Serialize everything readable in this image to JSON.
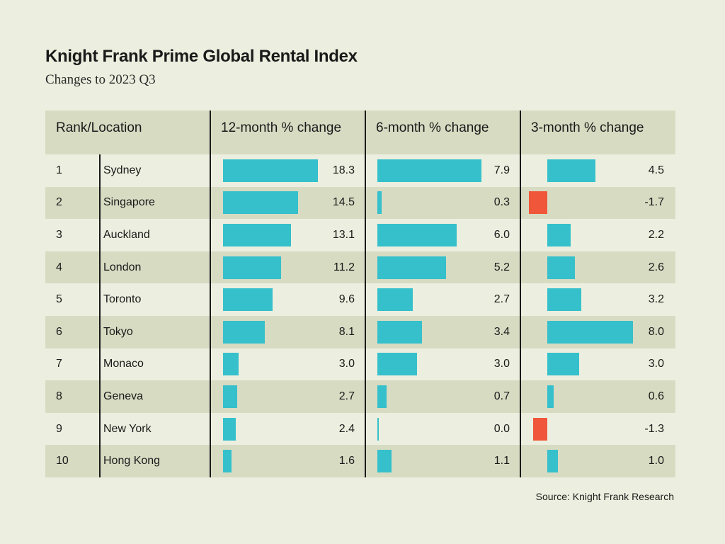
{
  "chart_data": {
    "type": "table",
    "title": "Knight Frank Prime Global Rental Index",
    "subtitle": "Changes to 2023 Q3",
    "columns": [
      "Rank/Location",
      "12-month % change",
      "6-month % change",
      "3-month % change"
    ],
    "rows": [
      {
        "rank": "1",
        "location": "Sydney",
        "m12": 18.3,
        "m12_label": "18.3",
        "m6": 7.9,
        "m6_label": "7.9",
        "m3": 4.5,
        "m3_label": "4.5"
      },
      {
        "rank": "2",
        "location": "Singapore",
        "m12": 14.5,
        "m12_label": "14.5",
        "m6": 0.3,
        "m6_label": "0.3",
        "m3": -1.7,
        "m3_label": "-1.7"
      },
      {
        "rank": "3",
        "location": "Auckland",
        "m12": 13.1,
        "m12_label": "13.1",
        "m6": 6.0,
        "m6_label": "6.0",
        "m3": 2.2,
        "m3_label": "2.2"
      },
      {
        "rank": "4",
        "location": "London",
        "m12": 11.2,
        "m12_label": "11.2",
        "m6": 5.2,
        "m6_label": "5.2",
        "m3": 2.6,
        "m3_label": "2.6"
      },
      {
        "rank": "5",
        "location": "Toronto",
        "m12": 9.6,
        "m12_label": "9.6",
        "m6": 2.7,
        "m6_label": "2.7",
        "m3": 3.2,
        "m3_label": "3.2"
      },
      {
        "rank": "6",
        "location": "Tokyo",
        "m12": 8.1,
        "m12_label": "8.1",
        "m6": 3.4,
        "m6_label": "3.4",
        "m3": 8.0,
        "m3_label": "8.0"
      },
      {
        "rank": "7",
        "location": "Monaco",
        "m12": 3.0,
        "m12_label": "3.0",
        "m6": 3.0,
        "m6_label": "3.0",
        "m3": 3.0,
        "m3_label": "3.0"
      },
      {
        "rank": "8",
        "location": "Geneva",
        "m12": 2.7,
        "m12_label": "2.7",
        "m6": 0.7,
        "m6_label": "0.7",
        "m3": 0.6,
        "m3_label": "0.6"
      },
      {
        "rank": "9",
        "location": "New York",
        "m12": 2.4,
        "m12_label": "2.4",
        "m6": 0.0,
        "m6_label": "0.0",
        "m3": -1.3,
        "m3_label": "-1.3"
      },
      {
        "rank": "10",
        "location": "Hong Kong",
        "m12": 1.6,
        "m12_label": "1.6",
        "m6": 1.1,
        "m6_label": "1.1",
        "m3": 1.0,
        "m3_label": "1.0"
      }
    ],
    "colors": {
      "positive": "#35c0cb",
      "negative": "#f0573a",
      "band": "#d7dbc2",
      "background": "#ecefdf"
    },
    "source": "Source: Knight Frank Research"
  }
}
